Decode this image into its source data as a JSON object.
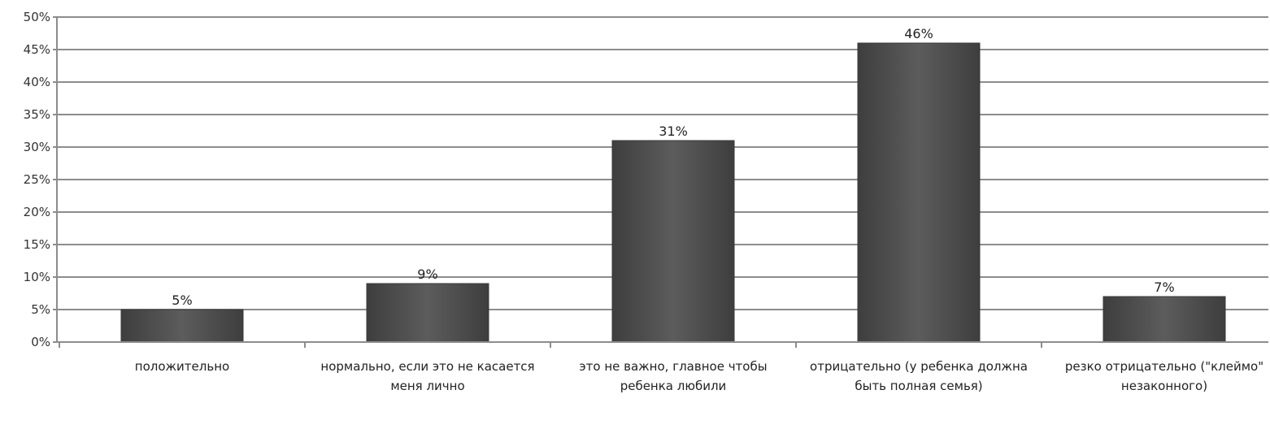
{
  "chart_data": {
    "type": "bar",
    "categories": [
      "положительно",
      "нормально, если это не касается меня лично",
      "это не важно, главное чтобы ребенка любили",
      "отрицательно (у ребенка должна быть полная семья)",
      "резко отрицательно (\"клеймо\" незаконного)"
    ],
    "values": [
      5,
      9,
      31,
      46,
      7
    ],
    "value_labels": [
      "5%",
      "9%",
      "31%",
      "46%",
      "7%"
    ],
    "ylim": [
      0,
      50
    ],
    "yticks": [
      0,
      5,
      10,
      15,
      20,
      25,
      30,
      35,
      40,
      45,
      50
    ],
    "ytick_labels": [
      "0%",
      "5%",
      "10%",
      "15%",
      "20%",
      "25%",
      "30%",
      "35%",
      "40%",
      "45%",
      "50%"
    ],
    "grid": true,
    "legend": "none",
    "bar_color": "#4f4f4f",
    "grid_color": "#8c8c8c"
  }
}
